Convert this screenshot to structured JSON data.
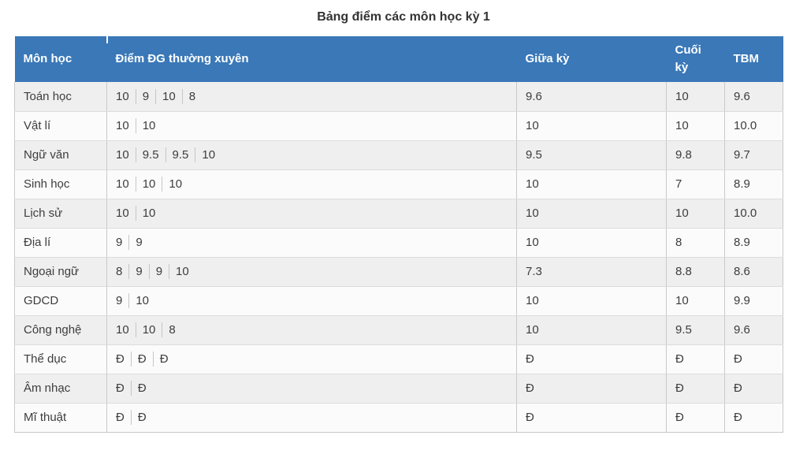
{
  "title": "Bảng điểm các môn học kỳ 1",
  "colors": {
    "header_bg": "#3a78b8",
    "header_text": "#ffffff",
    "row_stripe": "#efefef",
    "row_plain": "#fbfbfb",
    "border_vertical": "#c9c9c9",
    "border_horizontal": "#dcdcdc",
    "body_text": "#3d3d3d",
    "title_text": "#333333"
  },
  "table": {
    "columns": [
      "Môn học",
      "Điểm ĐG thường xuyên",
      "Giữa kỳ",
      "Cuối kỳ",
      "TBM"
    ],
    "rows": [
      {
        "subject": "Toán học",
        "regular": [
          "10",
          "9",
          "10",
          "8"
        ],
        "mid": "9.6",
        "final": "10",
        "avg": "9.6"
      },
      {
        "subject": "Vật lí",
        "regular": [
          "10",
          "10"
        ],
        "mid": "10",
        "final": "10",
        "avg": "10.0"
      },
      {
        "subject": "Ngữ văn",
        "regular": [
          "10",
          "9.5",
          "9.5",
          "10"
        ],
        "mid": "9.5",
        "final": "9.8",
        "avg": "9.7"
      },
      {
        "subject": "Sinh học",
        "regular": [
          "10",
          "10",
          "10"
        ],
        "mid": "10",
        "final": "7",
        "avg": "8.9"
      },
      {
        "subject": "Lịch sử",
        "regular": [
          "10",
          "10"
        ],
        "mid": "10",
        "final": "10",
        "avg": "10.0"
      },
      {
        "subject": "Địa lí",
        "regular": [
          "9",
          "9"
        ],
        "mid": "10",
        "final": "8",
        "avg": "8.9"
      },
      {
        "subject": "Ngoại ngữ",
        "regular": [
          "8",
          "9",
          "9",
          "10"
        ],
        "mid": "7.3",
        "final": "8.8",
        "avg": "8.6"
      },
      {
        "subject": "GDCD",
        "regular": [
          "9",
          "10"
        ],
        "mid": "10",
        "final": "10",
        "avg": "9.9"
      },
      {
        "subject": "Công nghệ",
        "regular": [
          "10",
          "10",
          "8"
        ],
        "mid": "10",
        "final": "9.5",
        "avg": "9.6"
      },
      {
        "subject": "Thể dục",
        "regular": [
          "Đ",
          "Đ",
          "Đ"
        ],
        "mid": "Đ",
        "final": "Đ",
        "avg": "Đ"
      },
      {
        "subject": "Âm nhạc",
        "regular": [
          "Đ",
          "Đ"
        ],
        "mid": "Đ",
        "final": "Đ",
        "avg": "Đ"
      },
      {
        "subject": "Mĩ thuật",
        "regular": [
          "Đ",
          "Đ"
        ],
        "mid": "Đ",
        "final": "Đ",
        "avg": "Đ"
      }
    ]
  }
}
